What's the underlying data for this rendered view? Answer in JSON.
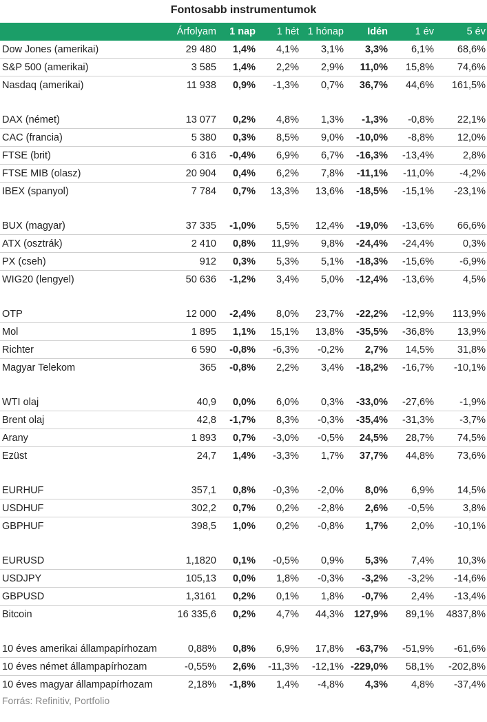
{
  "title": "Fontosabb instrumentumok",
  "header": [
    "",
    "Árfolyam",
    "1 nap",
    "1 hét",
    "1 hónap",
    "Idén",
    "1 év",
    "5 év"
  ],
  "groups": [
    [
      [
        "Dow Jones (amerikai)",
        "29 480",
        "1,4%",
        "4,1%",
        "3,1%",
        "3,3%",
        "6,1%",
        "68,6%"
      ],
      [
        "S&P 500 (amerikai)",
        "3 585",
        "1,4%",
        "2,2%",
        "2,9%",
        "11,0%",
        "15,8%",
        "74,6%"
      ],
      [
        "Nasdaq (amerikai)",
        "11 938",
        "0,9%",
        "-1,3%",
        "0,7%",
        "36,7%",
        "44,6%",
        "161,5%"
      ]
    ],
    [
      [
        "DAX (német)",
        "13 077",
        "0,2%",
        "4,8%",
        "1,3%",
        "-1,3%",
        "-0,8%",
        "22,1%"
      ],
      [
        "CAC (francia)",
        "5 380",
        "0,3%",
        "8,5%",
        "9,0%",
        "-10,0%",
        "-8,8%",
        "12,0%"
      ],
      [
        "FTSE (brit)",
        "6 316",
        "-0,4%",
        "6,9%",
        "6,7%",
        "-16,3%",
        "-13,4%",
        "2,8%"
      ],
      [
        "FTSE MIB (olasz)",
        "20 904",
        "0,4%",
        "6,2%",
        "7,8%",
        "-11,1%",
        "-11,0%",
        "-4,2%"
      ],
      [
        "IBEX (spanyol)",
        "7 784",
        "0,7%",
        "13,3%",
        "13,6%",
        "-18,5%",
        "-15,1%",
        "-23,1%"
      ]
    ],
    [
      [
        "BUX (magyar)",
        "37 335",
        "-1,0%",
        "5,5%",
        "12,4%",
        "-19,0%",
        "-13,6%",
        "66,6%"
      ],
      [
        "ATX (osztrák)",
        "2 410",
        "0,8%",
        "11,9%",
        "9,8%",
        "-24,4%",
        "-24,4%",
        "0,3%"
      ],
      [
        "PX (cseh)",
        "912",
        "0,3%",
        "5,3%",
        "5,1%",
        "-18,3%",
        "-15,6%",
        "-6,9%"
      ],
      [
        "WIG20 (lengyel)",
        "50 636",
        "-1,2%",
        "3,4%",
        "5,0%",
        "-12,4%",
        "-13,6%",
        "4,5%"
      ]
    ],
    [
      [
        "OTP",
        "12 000",
        "-2,4%",
        "8,0%",
        "23,7%",
        "-22,2%",
        "-12,9%",
        "113,9%"
      ],
      [
        "Mol",
        "1 895",
        "1,1%",
        "15,1%",
        "13,8%",
        "-35,5%",
        "-36,8%",
        "13,9%"
      ],
      [
        "Richter",
        "6 590",
        "-0,8%",
        "-6,3%",
        "-0,2%",
        "2,7%",
        "14,5%",
        "31,8%"
      ],
      [
        "Magyar Telekom",
        "365",
        "-0,8%",
        "2,2%",
        "3,4%",
        "-18,2%",
        "-16,7%",
        "-10,1%"
      ]
    ],
    [
      [
        "WTI olaj",
        "40,9",
        "0,0%",
        "6,0%",
        "0,3%",
        "-33,0%",
        "-27,6%",
        "-1,9%"
      ],
      [
        "Brent olaj",
        "42,8",
        "-1,7%",
        "8,3%",
        "-0,3%",
        "-35,4%",
        "-31,3%",
        "-3,7%"
      ],
      [
        "Arany",
        "1 893",
        "0,7%",
        "-3,0%",
        "-0,5%",
        "24,5%",
        "28,7%",
        "74,5%"
      ],
      [
        "Ezüst",
        "24,7",
        "1,4%",
        "-3,3%",
        "1,7%",
        "37,7%",
        "44,8%",
        "73,6%"
      ]
    ],
    [
      [
        "EURHUF",
        "357,1",
        "0,8%",
        "-0,3%",
        "-2,0%",
        "8,0%",
        "6,9%",
        "14,5%"
      ],
      [
        "USDHUF",
        "302,2",
        "0,7%",
        "0,2%",
        "-2,8%",
        "2,6%",
        "-0,5%",
        "3,8%"
      ],
      [
        "GBPHUF",
        "398,5",
        "1,0%",
        "0,2%",
        "-0,8%",
        "1,7%",
        "2,0%",
        "-10,1%"
      ]
    ],
    [
      [
        "EURUSD",
        "1,1820",
        "0,1%",
        "-0,5%",
        "0,9%",
        "5,3%",
        "7,4%",
        "10,3%"
      ],
      [
        "USDJPY",
        "105,13",
        "0,0%",
        "1,8%",
        "-0,3%",
        "-3,2%",
        "-3,2%",
        "-14,6%"
      ],
      [
        "GBPUSD",
        "1,3161",
        "0,2%",
        "0,1%",
        "1,8%",
        "-0,7%",
        "2,4%",
        "-13,4%"
      ],
      [
        "Bitcoin",
        "16 335,6",
        "0,2%",
        "4,7%",
        "44,3%",
        "127,9%",
        "89,1%",
        "4837,8%"
      ]
    ],
    [
      [
        "10 éves amerikai állampapírhozam",
        "0,88%",
        "0,8%",
        "6,9%",
        "17,8%",
        "-63,7%",
        "-51,9%",
        "-61,6%"
      ],
      [
        "10 éves német állampapírhozam",
        "-0,55%",
        "2,6%",
        "-11,3%",
        "-12,1%",
        "-229,0%",
        "58,1%",
        "-202,8%"
      ],
      [
        "10 éves magyar állampapírhozam",
        "2,18%",
        "-1,8%",
        "1,4%",
        "-4,8%",
        "4,3%",
        "4,8%",
        "-37,4%"
      ]
    ]
  ],
  "source": "Forrás: Refinitiv, Portfolio"
}
